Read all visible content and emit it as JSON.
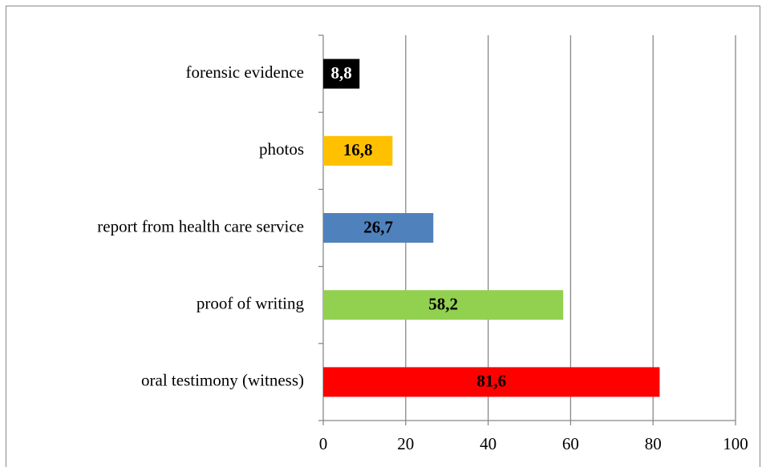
{
  "chart_data": {
    "type": "bar",
    "orientation": "horizontal",
    "categories": [
      "forensic evidence",
      "photos",
      "report from health care service",
      "proof of writing",
      "oral testimony (witness)"
    ],
    "values": [
      8.8,
      16.8,
      26.7,
      58.2,
      81.6
    ],
    "value_labels": [
      "8,8",
      "16,8",
      "26,7",
      "58,2",
      "81,6"
    ],
    "colors": [
      "#000000",
      "#ffc000",
      "#4f81bd",
      "#92d050",
      "#ff0000"
    ],
    "xlim": [
      0,
      100
    ],
    "xticks": [
      0,
      20,
      40,
      60,
      80,
      100
    ],
    "grid": true
  }
}
